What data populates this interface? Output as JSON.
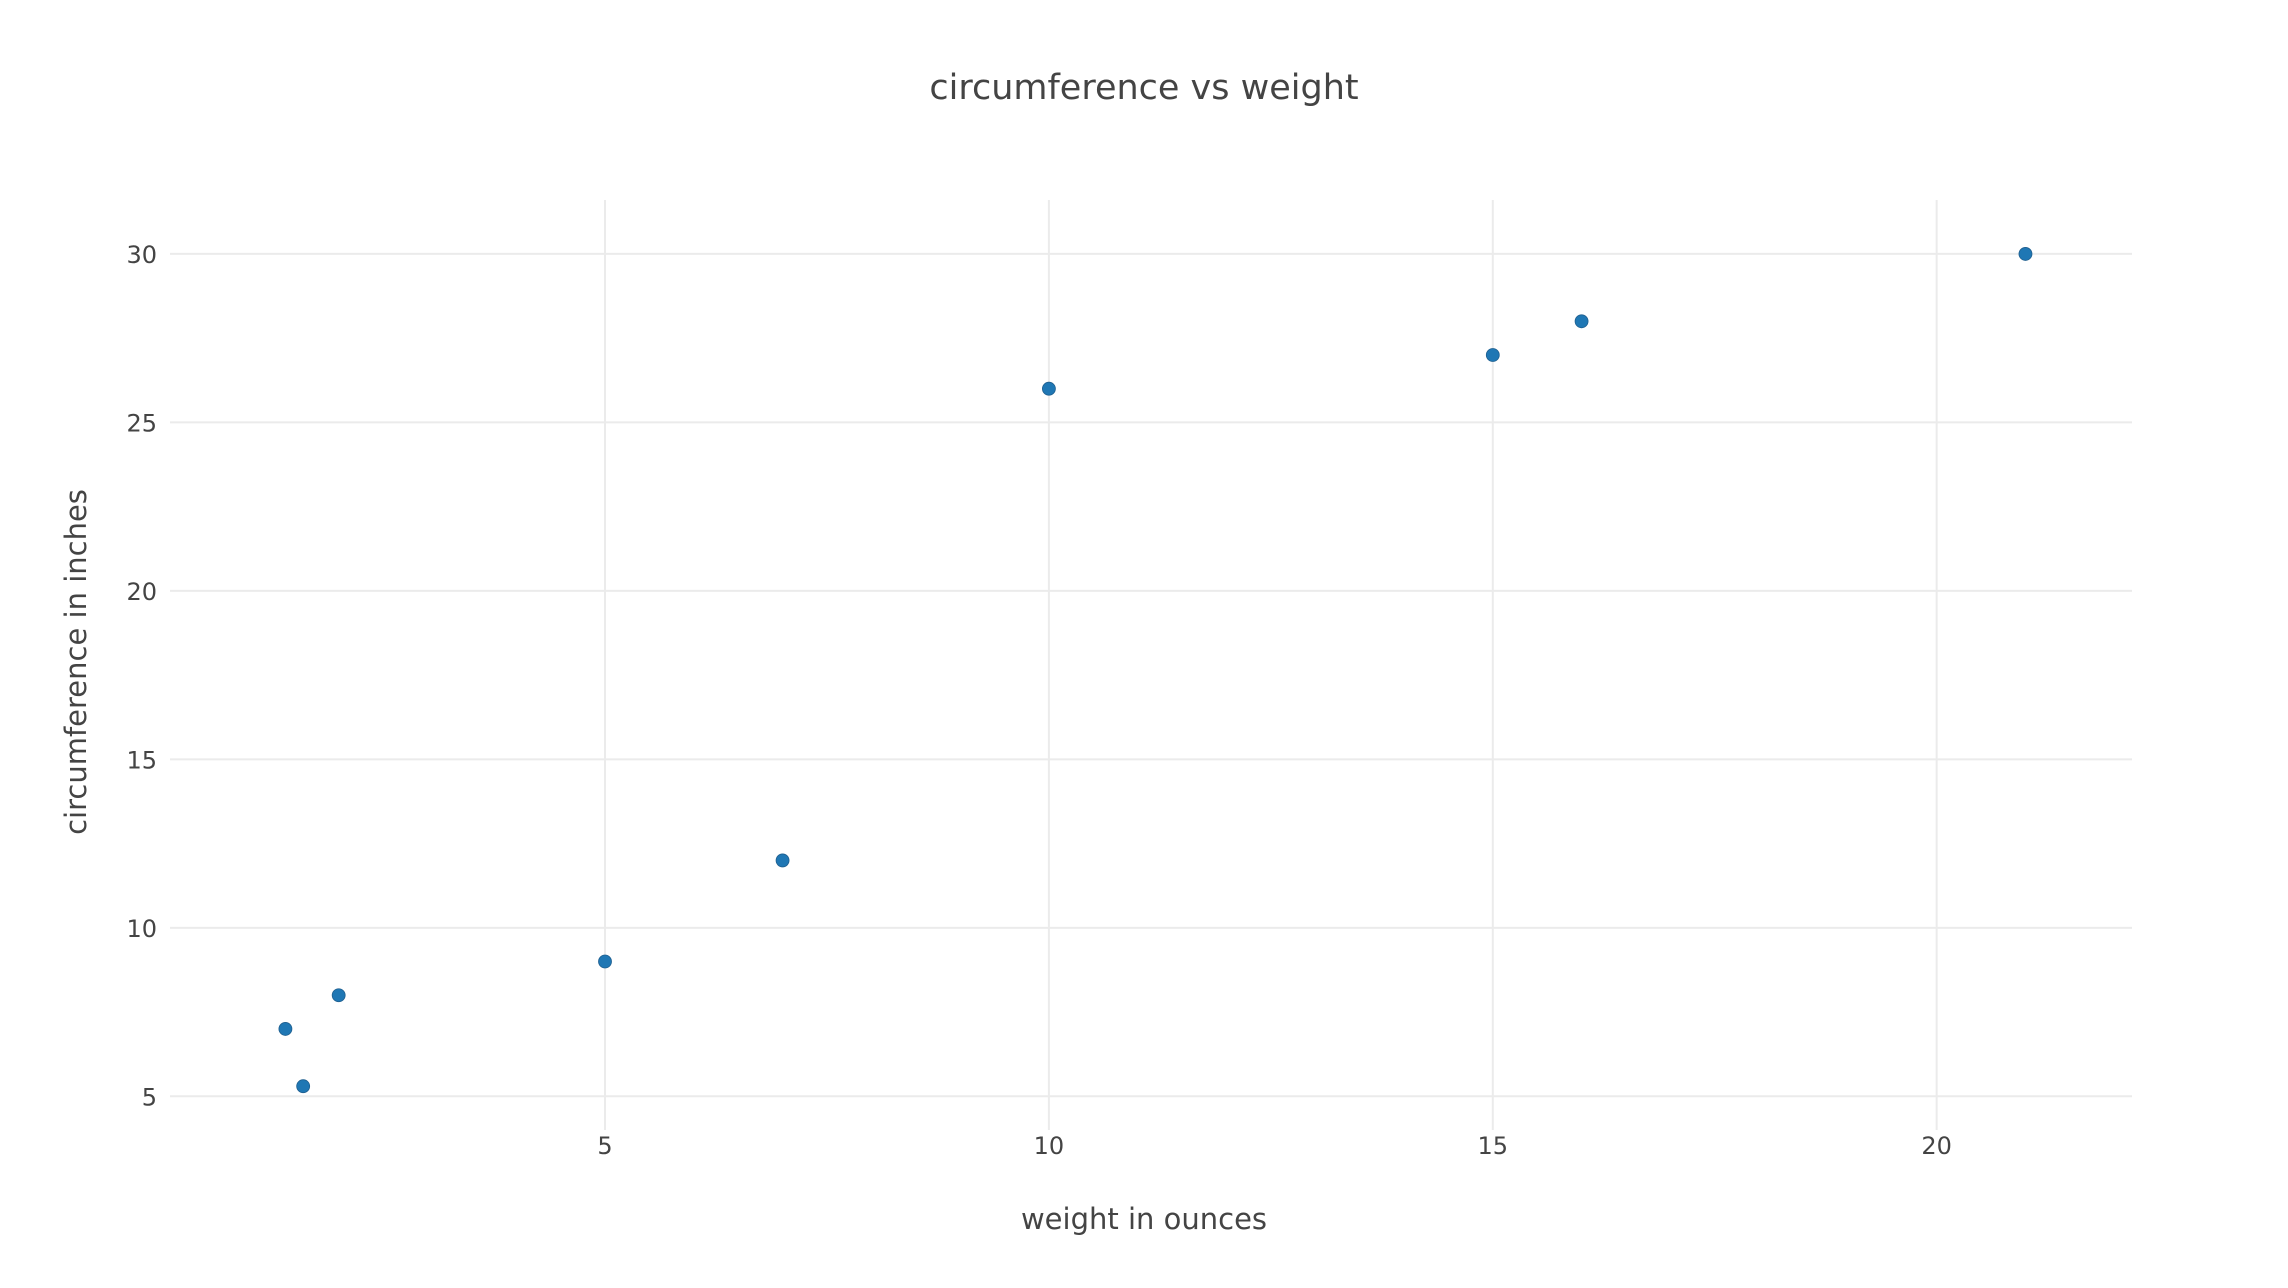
{
  "chart_data": {
    "type": "scatter",
    "title": "circumference vs weight",
    "xlabel": "weight in ounces",
    "ylabel": "circumference in inches",
    "xlim": [
      0.1,
      22.2
    ],
    "ylim": [
      4.0,
      31.6
    ],
    "xticks": [
      5,
      10,
      15,
      20
    ],
    "yticks": [
      5,
      10,
      15,
      20,
      25,
      30
    ],
    "grid": true,
    "legend": "none",
    "marker_color": "#1f77b4",
    "points": [
      {
        "x": 1.4,
        "y": 7
      },
      {
        "x": 1.6,
        "y": 5.3
      },
      {
        "x": 2,
        "y": 8
      },
      {
        "x": 5,
        "y": 9
      },
      {
        "x": 7,
        "y": 12
      },
      {
        "x": 10,
        "y": 26
      },
      {
        "x": 15,
        "y": 27
      },
      {
        "x": 16,
        "y": 28
      },
      {
        "x": 21,
        "y": 30
      }
    ]
  }
}
